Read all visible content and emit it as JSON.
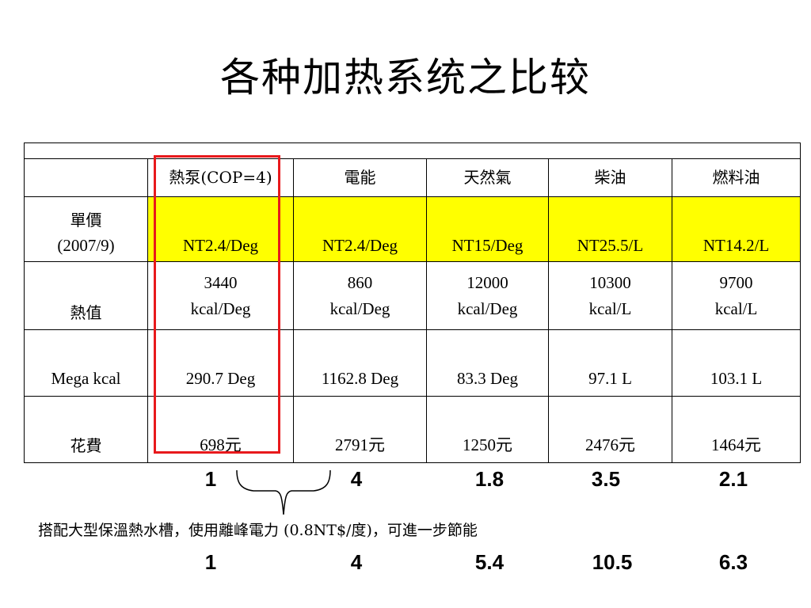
{
  "title": "各种加热系统之比较",
  "table": {
    "columns": [
      "熱泵(COP=4)",
      "電能",
      "天然氣",
      "柴油",
      "燃料油"
    ],
    "price": {
      "label_line1": "單價",
      "label_line2": "(2007/9)",
      "values": [
        "NT2.4/Deg",
        "NT2.4/Deg",
        "NT15/Deg",
        "NT25.5/L",
        "NT14.2/L"
      ]
    },
    "heat": {
      "label": "熱值",
      "values": [
        {
          "num": "3440",
          "unit": "kcal/Deg"
        },
        {
          "num": "860",
          "unit": "kcal/Deg"
        },
        {
          "num": "12000",
          "unit": "kcal/Deg"
        },
        {
          "num": "10300",
          "unit": "kcal/L"
        },
        {
          "num": "9700",
          "unit": "kcal/L"
        }
      ]
    },
    "mega": {
      "label": "Mega kcal",
      "values": [
        "290.7 Deg",
        "1162.8 Deg",
        "83.3 Deg",
        "97.1 L",
        "103.1 L"
      ]
    },
    "cost": {
      "label": "花費",
      "values": [
        "698元",
        "2791元",
        "1250元",
        "2476元",
        "1464元"
      ]
    }
  },
  "ratios_top": [
    "1",
    "4",
    "1.8",
    "3.5",
    "2.1"
  ],
  "note": "搭配大型保溫熱水槽，使用離峰電力 (0.8NT$/度)，可進一步節能",
  "ratios_bottom": [
    "1",
    "4",
    "5.4",
    "10.5",
    "6.3"
  ],
  "colors": {
    "highlight_box": "#e8191c",
    "price_row_fill": "#ffff00"
  }
}
